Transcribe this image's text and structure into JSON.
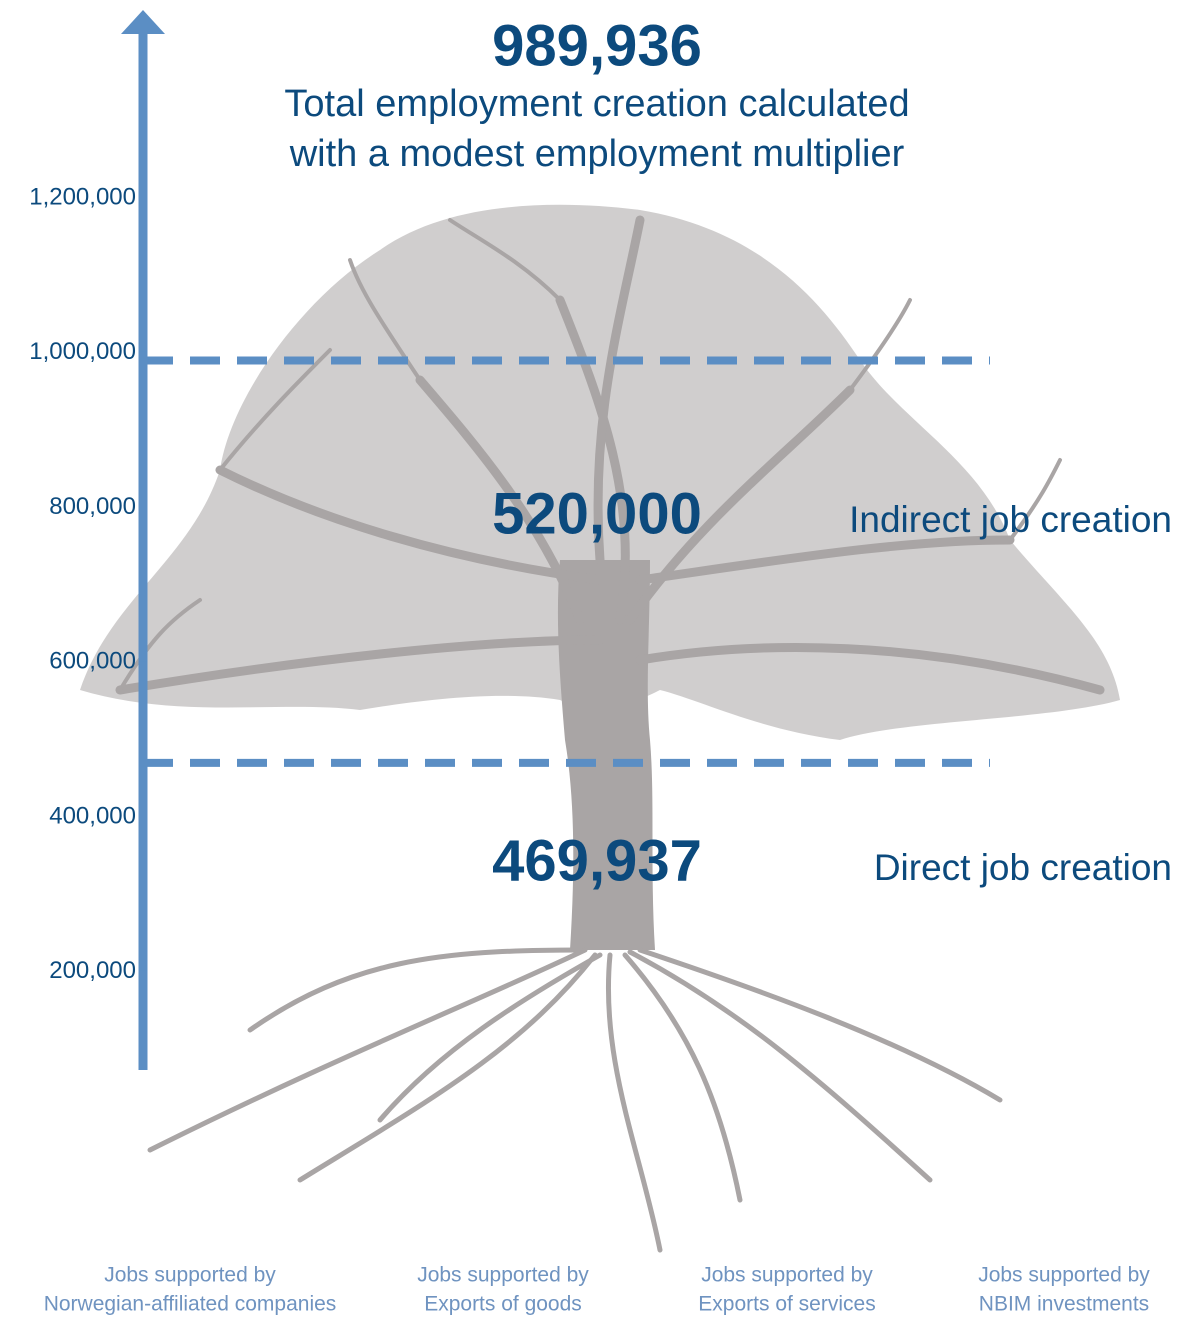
{
  "chart_data": {
    "type": "tree",
    "total": 989936,
    "total_label": "989,936",
    "caption": [
      "Total employment creation calculated",
      "with a modest employment multiplier"
    ],
    "series": [
      {
        "name": "Direct job creation",
        "color": "#5b8ec4",
        "values": [
          469937
        ],
        "value_labels": [
          "469,937"
        ]
      },
      {
        "name": "Indirect job creation",
        "color": "#5b8ec4",
        "values": [
          520000
        ],
        "value_labels": [
          "520,000"
        ]
      }
    ],
    "ylim": [
      73000,
      1443000
    ],
    "yticks": [
      {
        "value": 200000,
        "label": "200,000"
      },
      {
        "value": 400000,
        "label": "400,000"
      },
      {
        "value": 600000,
        "label": "600,000"
      },
      {
        "value": 800000,
        "label": "800,000"
      },
      {
        "value": 1000000,
        "label": "1,000,000"
      },
      {
        "value": 1200000,
        "label": "1,200,000"
      }
    ],
    "sources": [
      [
        "Jobs supported by",
        "Norwegian-affiliated companies"
      ],
      [
        "Jobs supported by",
        "Exports of goods"
      ],
      [
        "Jobs supported by",
        "Exports of services"
      ],
      [
        "Jobs supported by",
        "NBIM investments"
      ]
    ]
  }
}
